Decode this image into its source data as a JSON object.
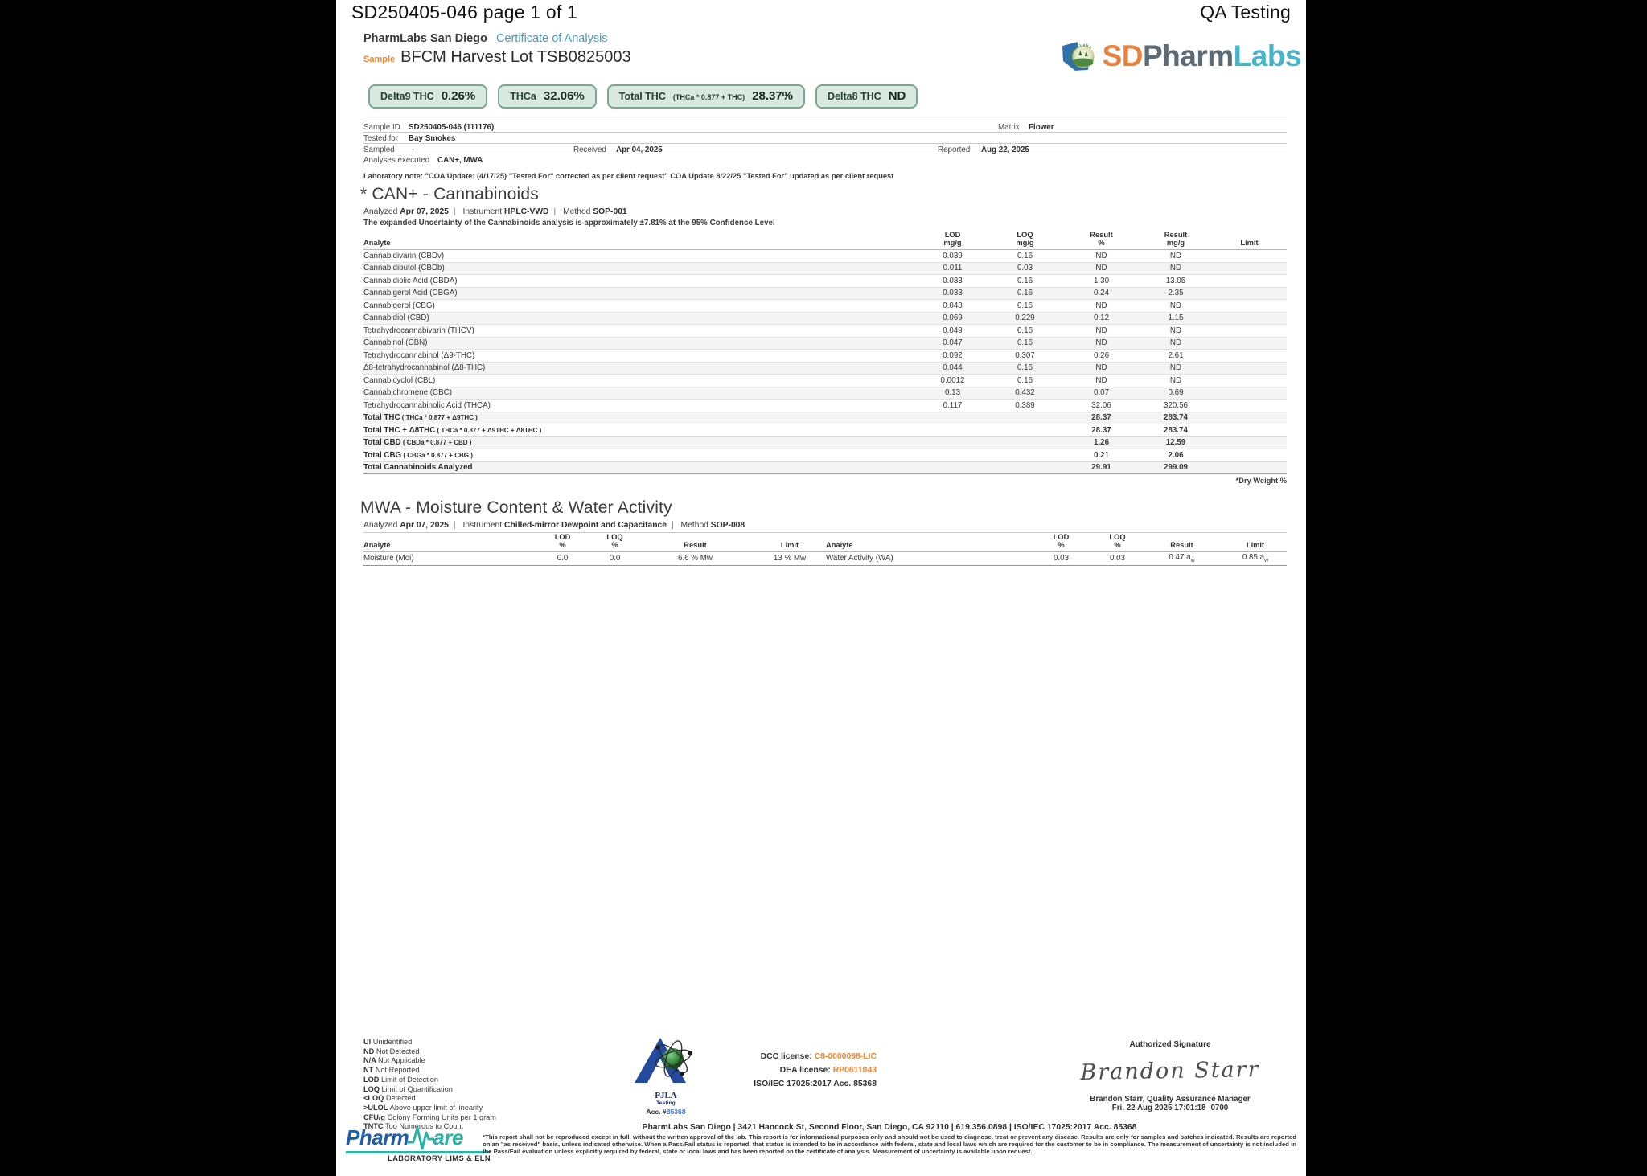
{
  "header": {
    "doc_title": "SD250405-046 page 1 of 1",
    "corner_label": "QA Testing"
  },
  "lab": {
    "name": "PharmLabs San Diego",
    "report_type": "Certificate of Analysis"
  },
  "logo": {
    "arc_text": "PharmLabs",
    "sd": "SD",
    "pharm": "Pharm",
    "labs": "Labs"
  },
  "sample": {
    "label": "Sample",
    "name": "BFCM Harvest Lot TSB0825003"
  },
  "badges": [
    {
      "label": "Delta9 THC",
      "value": "0.26%"
    },
    {
      "label": "THCa",
      "value": "32.06%"
    },
    {
      "label": "Total THC",
      "formula": "(THCa * 0.877 + THC)",
      "value": "28.37%"
    },
    {
      "label": "Delta8 THC",
      "value": "ND"
    }
  ],
  "info": {
    "sample_id_label": "Sample ID",
    "sample_id": "SD250405-046 (111176)",
    "matrix_label": "Matrix",
    "matrix": "Flower",
    "tested_for_label": "Tested for",
    "tested_for": "Bay Smokes",
    "sampled_label": "Sampled",
    "sampled": "-",
    "received_label": "Received",
    "received": "Apr 04, 2025",
    "reported_label": "Reported",
    "reported": "Aug 22, 2025",
    "analyses_label": "Analyses executed",
    "analyses": "CAN+, MWA",
    "lab_note": "Laboratory note: \"COA Update: (4/17/25) \"Tested For\" corrected as per client request\" COA Update 8/22/25 \"Tested For\" updated as per client request"
  },
  "cannabinoids": {
    "title": "* CAN+ - Cannabinoids",
    "meta": {
      "analyzed_label": "Analyzed",
      "analyzed": "Apr 07, 2025",
      "instrument_label": "Instrument",
      "instrument": "HPLC-VWD",
      "method_label": "Method",
      "method": "SOP-001"
    },
    "uncertainty": "The expanded Uncertainty of the Cannabinoids analysis is approximately ±7.81% at the 95% Confidence Level",
    "headers": {
      "analyte": "Analyte",
      "lod": "LOD",
      "loq": "LOQ",
      "result": "Result",
      "unit_mg": "mg/g",
      "unit_pct": "%",
      "limit": "Limit"
    },
    "rows": [
      {
        "analyte": "Cannabidivarin (CBDv)",
        "lod": "0.039",
        "loq": "0.16",
        "result_pct": "ND",
        "result_mg": "ND"
      },
      {
        "analyte": "Cannabidibutol (CBDb)",
        "lod": "0.011",
        "loq": "0.03",
        "result_pct": "ND",
        "result_mg": "ND"
      },
      {
        "analyte": "Cannabidiolic Acid (CBDA)",
        "lod": "0.033",
        "loq": "0.16",
        "result_pct": "1.30",
        "result_mg": "13.05"
      },
      {
        "analyte": "Cannabigerol Acid (CBGA)",
        "lod": "0.033",
        "loq": "0.16",
        "result_pct": "0.24",
        "result_mg": "2.35"
      },
      {
        "analyte": "Cannabigerol (CBG)",
        "lod": "0.048",
        "loq": "0.16",
        "result_pct": "ND",
        "result_mg": "ND"
      },
      {
        "analyte": "Cannabidiol (CBD)",
        "lod": "0.069",
        "loq": "0.229",
        "result_pct": "0.12",
        "result_mg": "1.15"
      },
      {
        "analyte": "Tetrahydrocannabivarin (THCV)",
        "lod": "0.049",
        "loq": "0.16",
        "result_pct": "ND",
        "result_mg": "ND"
      },
      {
        "analyte": "Cannabinol (CBN)",
        "lod": "0.047",
        "loq": "0.16",
        "result_pct": "ND",
        "result_mg": "ND"
      },
      {
        "analyte": "Tetrahydrocannabinol (Δ9-THC)",
        "lod": "0.092",
        "loq": "0.307",
        "result_pct": "0.26",
        "result_mg": "2.61"
      },
      {
        "analyte": "Δ8-tetrahydrocannabinol (Δ8-THC)",
        "lod": "0.044",
        "loq": "0.16",
        "result_pct": "ND",
        "result_mg": "ND"
      },
      {
        "analyte": "Cannabicyclol (CBL)",
        "lod": "0.0012",
        "loq": "0.16",
        "result_pct": "ND",
        "result_mg": "ND"
      },
      {
        "analyte": "Cannabichromene (CBC)",
        "lod": "0.13",
        "loq": "0.432",
        "result_pct": "0.07",
        "result_mg": "0.69"
      },
      {
        "analyte": "Tetrahydrocannabinolic Acid (THCA)",
        "lod": "0.117",
        "loq": "0.389",
        "result_pct": "32.06",
        "result_mg": "320.56"
      },
      {
        "analyte": "Total THC",
        "formula": "( THCa * 0.877 + Δ9THC )",
        "total": true,
        "result_pct": "28.37",
        "result_mg": "283.74"
      },
      {
        "analyte": "Total THC + Δ8THC",
        "formula": "( THCa * 0.877 + Δ9THC + Δ8THC )",
        "total": true,
        "result_pct": "28.37",
        "result_mg": "283.74"
      },
      {
        "analyte": "Total CBD",
        "formula": "( CBDa * 0.877 + CBD )",
        "total": true,
        "result_pct": "1.26",
        "result_mg": "12.59"
      },
      {
        "analyte": "Total CBG",
        "formula": "( CBGa * 0.877 + CBG )",
        "total": true,
        "result_pct": "0.21",
        "result_mg": "2.06"
      },
      {
        "analyte": "Total Cannabinoids Analyzed",
        "total": true,
        "result_pct": "29.91",
        "result_mg": "299.09"
      }
    ],
    "footnote": "*Dry Weight %"
  },
  "moisture": {
    "title": "MWA - Moisture Content & Water Activity",
    "meta": {
      "analyzed_label": "Analyzed",
      "analyzed": "Apr 07, 2025",
      "instrument_label": "Instrument",
      "instrument": "Chilled-mirror Dewpoint and Capacitance",
      "method_label": "Method",
      "method": "SOP-008"
    },
    "headers": {
      "analyte": "Analyte",
      "lod": "LOD",
      "loq": "LOQ",
      "unit_pct": "%",
      "result": "Result",
      "limit": "Limit"
    },
    "row": {
      "analyte1": "Moisture (Moi)",
      "lod1": "0.0",
      "loq1": "0.0",
      "result1": "6.6 % Mw",
      "limit1": "13 % Mw",
      "analyte2": "Water Activity (WA)",
      "lod2": "0.03",
      "loq2": "0.03",
      "result2": "0.47 a",
      "result2_sub": "w",
      "limit2": "0.85 a",
      "limit2_sub": "w"
    }
  },
  "legend": [
    {
      "abbr": "UI",
      "text": "Unidentified"
    },
    {
      "abbr": "ND",
      "text": "Not Detected"
    },
    {
      "abbr": "N/A",
      "text": "Not Applicable"
    },
    {
      "abbr": "NT",
      "text": "Not Reported"
    },
    {
      "abbr": "LOD",
      "text": "Limit of Detection"
    },
    {
      "abbr": "LOQ",
      "text": "Limit of Quantification"
    },
    {
      "abbr": "<LOQ",
      "text": "Detected"
    },
    {
      "abbr": ">ULOL",
      "text": "Above upper limit of linearity"
    },
    {
      "abbr": "CFU/g",
      "text": "Colony Forming Units per 1 gram"
    },
    {
      "abbr": "TNTC",
      "text": "Too Numerous to Count"
    }
  ],
  "accreditation": {
    "name": "PJLA",
    "sub": "Testing",
    "acc_label": "Acc. #",
    "acc_number": "85368"
  },
  "licenses": {
    "dcc_label": "DCC license: ",
    "dcc": "C8-0000098-LIC",
    "dea_label": "DEA license: ",
    "dea": "RP0611043",
    "iso": "ISO/IEC 17025:2017 Acc. 85368"
  },
  "signature": {
    "heading": "Authorized Signature",
    "script": "Brandon Starr",
    "name_title": "Brandon Starr, Quality Assurance Manager",
    "datetime": "Fri, 22 Aug 2025 17:01:18 -0700"
  },
  "pharmware": {
    "pharm": "Pharm",
    "are": "are",
    "tagline": "LABORATORY LIMS & ELN"
  },
  "footer": {
    "address": "PharmLabs San Diego | 3421 Hancock St, Second Floor, San Diego, CA 92110 | 619.356.0898 | ISO/IEC 17025:2017 Acc. 85368",
    "disclaimer": "*This report shall not be reproduced except in full, without the written approval of the lab. This report is for informational purposes only and should not be used to diagnose, treat or prevent any disease. Results are only for samples and batches indicated. Results are reported on an \"as received\" basis, unless indicated otherwise. When a Pass/Fail status is reported, that status is intended to be in accordance with federal, state and local laws which are required for the customer to be in compliance. The measurement of uncertainty is not included in the Pass/Fail evaluation unless explicitly required by federal, state or local laws and has been reported on the certificate of analysis. Measurement of uncertainty is available upon request."
  },
  "colors": {
    "accent_teal": "#4b9ab8",
    "accent_orange": "#ee8338",
    "nd_green": "#2f9e60",
    "result_blue": "#3c4e9c",
    "badge_bg": "#d8e9df",
    "badge_border": "#7aa78e"
  }
}
